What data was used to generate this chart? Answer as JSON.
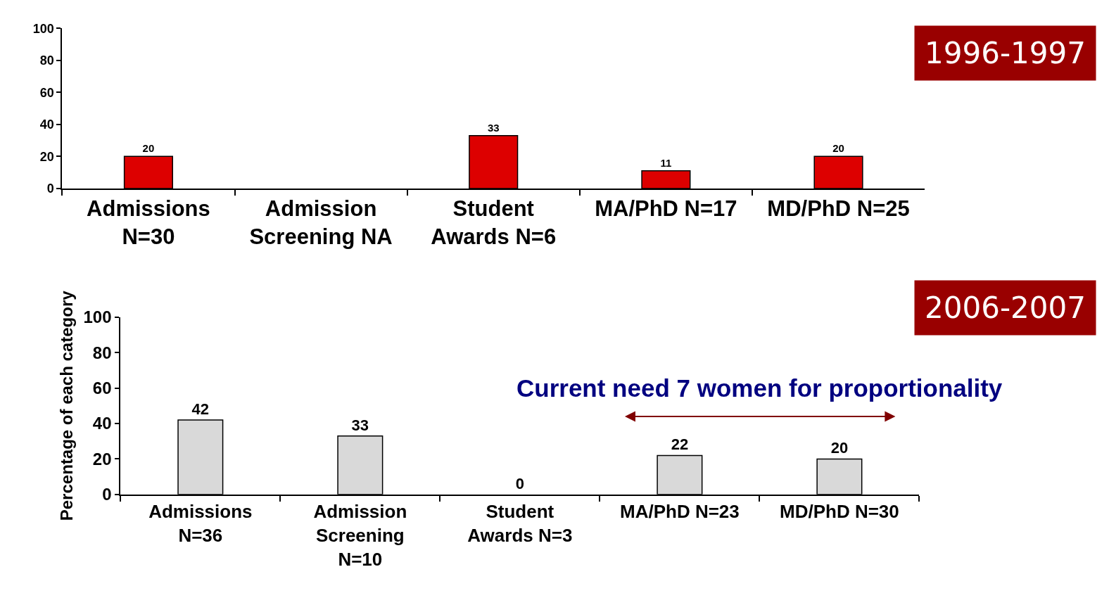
{
  "chart_data": [
    {
      "type": "bar",
      "title": "1996-1997",
      "categories": [
        "Admissions\nN=30",
        "Admission\nScreening NA",
        "Student\nAwards N=6",
        "MA/PhD N=17",
        "MD/PhD N=25"
      ],
      "series": [
        {
          "color": "#dd0000",
          "values": [
            20,
            null,
            33,
            11,
            20
          ]
        }
      ],
      "ylim": [
        0,
        100
      ],
      "yticks": [
        0,
        20,
        40,
        60,
        80,
        100
      ],
      "data_labels": true
    },
    {
      "type": "bar",
      "title": "2006-2007",
      "ylabel": "Percentage of each category",
      "categories": [
        "Admissions\nN=36",
        "Admission\nScreening\nN=10",
        "Student\nAwards N=3",
        "MA/PhD N=23",
        "MD/PhD N=30"
      ],
      "series": [
        {
          "color": "#d9d9d9",
          "values": [
            42,
            33,
            0,
            22,
            20
          ]
        }
      ],
      "ylim": [
        0,
        100
      ],
      "yticks": [
        0,
        20,
        40,
        60,
        80,
        100
      ],
      "data_labels": true,
      "annotations": [
        "Current need 7 women for proportionality"
      ]
    }
  ]
}
